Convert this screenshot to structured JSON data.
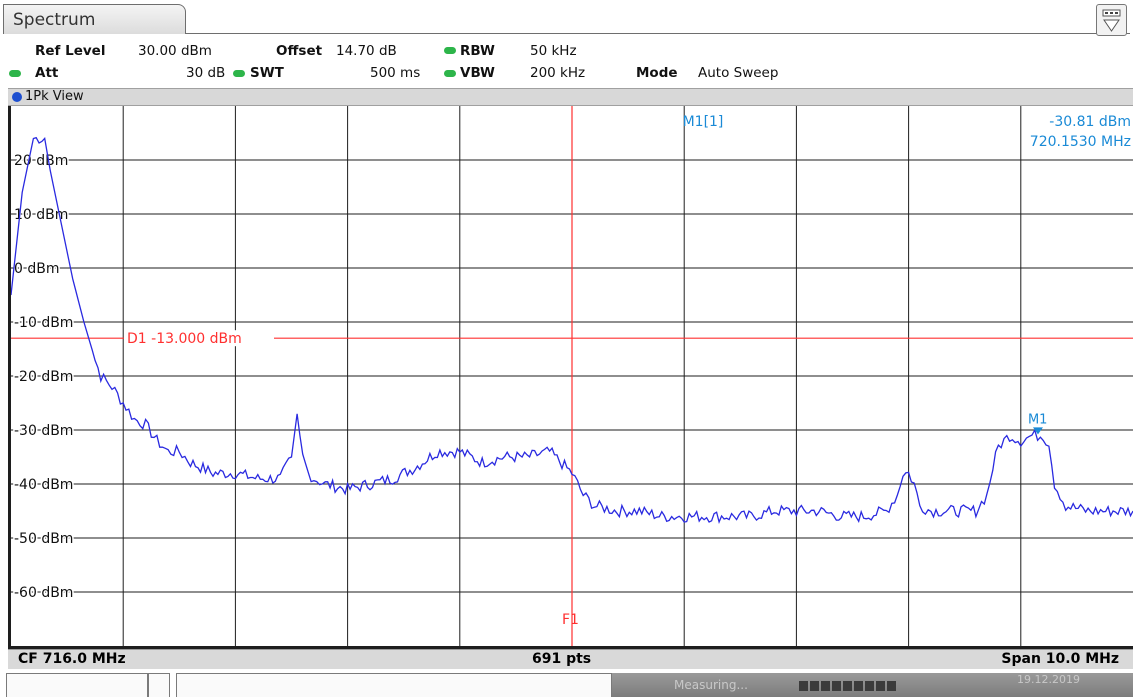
{
  "tab": {
    "label": "Spectrum"
  },
  "header": {
    "ref_level_label": "Ref Level",
    "ref_level_value": "30.00 dBm",
    "offset_label": "Offset",
    "offset_value": "14.70 dB",
    "rbw_label": "RBW",
    "rbw_value": "50 kHz",
    "att_label": "Att",
    "att_value": "30 dB",
    "swt_label": "SWT",
    "swt_value": "500 ms",
    "vbw_label": "VBW",
    "vbw_value": "200 kHz",
    "mode_label": "Mode",
    "mode_value": "Auto Sweep"
  },
  "view": {
    "label": "1Pk View"
  },
  "marker": {
    "name": "M1[1]",
    "level": "-30.81 dBm",
    "freq": "720.1530 MHz",
    "label": "M1"
  },
  "display_line": {
    "label": "D1 -13.000 dBm",
    "value": -13.0,
    "color": "#ff3030"
  },
  "frequency_line": {
    "label": "F1"
  },
  "footer": {
    "cf": "CF 716.0 MHz",
    "pts": "691 pts",
    "span": "Span 10.0 MHz"
  },
  "status": {
    "text": "Measuring...",
    "date": "19.12.2019"
  },
  "colors": {
    "trace": "#2a2ae0",
    "marker": "#1a8ad6",
    "limit": "#ff3030",
    "status_bar": "#8a8a8a"
  },
  "chart_data": {
    "type": "line",
    "title": "",
    "xlabel": "",
    "ylabel": "",
    "x_center_mhz": 716.0,
    "span_mhz": 10.0,
    "xlim": [
      711.0,
      721.0
    ],
    "ylim": [
      -70,
      30
    ],
    "y_ticks": [
      20,
      10,
      0,
      -10,
      -20,
      -30,
      -40,
      -50,
      -60
    ],
    "y_tick_labels": [
      "20 dBm",
      "10 dBm",
      "0 dBm",
      "-10 dBm",
      "-20 dBm",
      "-30 dBm",
      "-40 dBm",
      "-50 dBm",
      "-60 dBm"
    ],
    "grid": true,
    "series": [
      {
        "x": [
          711.0,
          711.1,
          711.2,
          711.3,
          711.35,
          711.45,
          711.55,
          711.65,
          711.75,
          711.8,
          711.9,
          712.0,
          712.1,
          712.2,
          712.3,
          712.4,
          712.5,
          712.6,
          712.8,
          713.0,
          713.2,
          713.4,
          713.5,
          713.55,
          713.6,
          713.65,
          713.7,
          713.8,
          714.0,
          714.2,
          714.4,
          714.6,
          714.8,
          715.0,
          715.2,
          715.4,
          715.6,
          715.8,
          716.0,
          716.1,
          716.2,
          716.4,
          716.6,
          716.8,
          717.0,
          717.2,
          717.4,
          717.6,
          717.8,
          718.0,
          718.2,
          718.4,
          718.6,
          718.8,
          718.9,
          718.95,
          719.0,
          719.05,
          719.1,
          719.2,
          719.4,
          719.6,
          719.7,
          719.75,
          719.8,
          719.9,
          720.0,
          720.1,
          720.15,
          720.2,
          720.25,
          720.3,
          720.4,
          720.6,
          720.8,
          721.0
        ],
        "y": [
          -5,
          14,
          24,
          24,
          18,
          8,
          -2,
          -10,
          -17,
          -20,
          -22,
          -25,
          -28,
          -29,
          -32,
          -34,
          -34,
          -36,
          -38,
          -38,
          -39,
          -39,
          -35,
          -27,
          -35,
          -38,
          -39,
          -40,
          -41,
          -40,
          -39,
          -37,
          -34,
          -34,
          -36,
          -35,
          -35,
          -34,
          -38,
          -42,
          -44,
          -45,
          -45,
          -46,
          -46,
          -46,
          -46,
          -46,
          -45,
          -45,
          -45,
          -46,
          -46,
          -45,
          -42,
          -38,
          -38,
          -40,
          -44,
          -45,
          -45,
          -45,
          -42,
          -37,
          -33,
          -31,
          -32,
          -31,
          -31,
          -31,
          -33,
          -40,
          -44,
          -45,
          -45,
          -45
        ]
      }
    ],
    "marker": {
      "x": 720.153,
      "y": -30.81
    }
  }
}
